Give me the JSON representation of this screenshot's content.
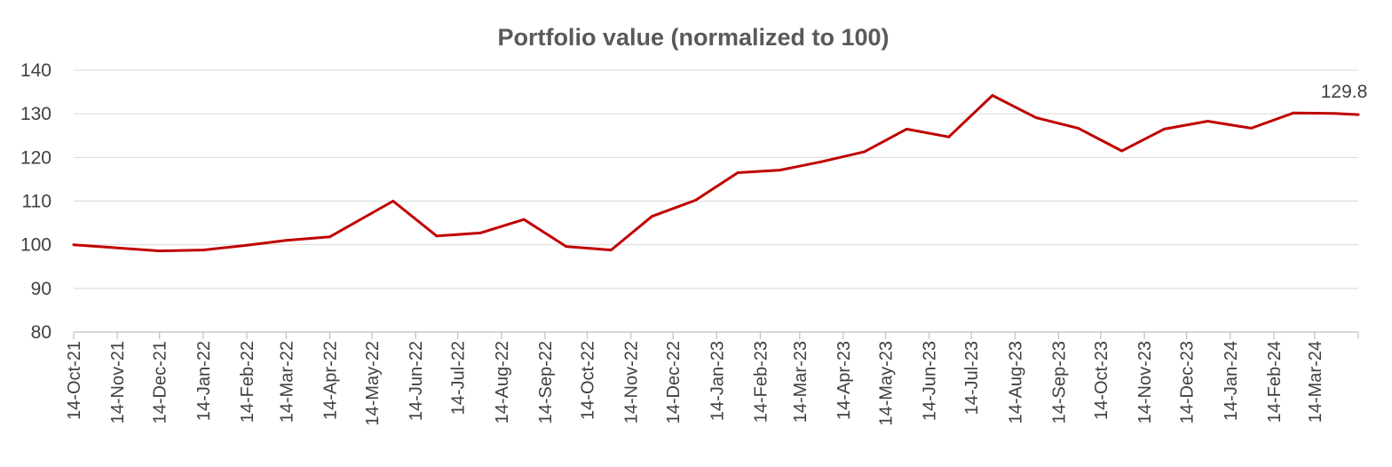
{
  "chart_data": {
    "type": "line",
    "title": "Portfolio value (normalized to 100)",
    "xlabel": "",
    "ylabel": "",
    "ylim": [
      80,
      140
    ],
    "yticks": [
      80,
      90,
      100,
      110,
      120,
      130,
      140
    ],
    "grid": true,
    "color": "#c00000",
    "x_tick_labels": [
      "14-Oct-21",
      "14-Nov-21",
      "14-Dec-21",
      "14-Jan-22",
      "14-Feb-22",
      "14-Mar-22",
      "14-Apr-22",
      "14-May-22",
      "14-Jun-22",
      "14-Jul-22",
      "14-Aug-22",
      "14-Sep-22",
      "14-Oct-22",
      "14-Nov-22",
      "14-Dec-22",
      "14-Jan-23",
      "14-Feb-23",
      "14-Mar-23",
      "14-Apr-23",
      "14-May-23",
      "14-Jun-23",
      "14-Jul-23",
      "14-Aug-23",
      "14-Sep-23",
      "14-Oct-23",
      "14-Nov-23",
      "14-Dec-23",
      "14-Jan-24",
      "14-Feb-24",
      "14-Mar-24"
    ],
    "x_range": [
      "2021-10-14",
      "2024-04-14"
    ],
    "series": [
      {
        "points": [
          {
            "x": "2021-10-14",
            "y": 100.0
          },
          {
            "x": "2021-12-14",
            "y": 98.6
          },
          {
            "x": "2022-01-14",
            "y": 98.8
          },
          {
            "x": "2022-02-14",
            "y": 99.9
          },
          {
            "x": "2022-03-14",
            "y": 101.0
          },
          {
            "x": "2022-04-14",
            "y": 101.8
          },
          {
            "x": "2022-05-29",
            "y": 110.0
          },
          {
            "x": "2022-06-29",
            "y": 102.0
          },
          {
            "x": "2022-07-30",
            "y": 102.7
          },
          {
            "x": "2022-08-30",
            "y": 105.8
          },
          {
            "x": "2022-09-29",
            "y": 99.6
          },
          {
            "x": "2022-10-31",
            "y": 98.8
          },
          {
            "x": "2022-11-29",
            "y": 106.5
          },
          {
            "x": "2022-12-30",
            "y": 110.2
          },
          {
            "x": "2023-01-29",
            "y": 116.5
          },
          {
            "x": "2023-02-28",
            "y": 117.1
          },
          {
            "x": "2023-03-29",
            "y": 119.0
          },
          {
            "x": "2023-04-29",
            "y": 121.3
          },
          {
            "x": "2023-05-29",
            "y": 126.5
          },
          {
            "x": "2023-06-28",
            "y": 124.7
          },
          {
            "x": "2023-07-29",
            "y": 134.2
          },
          {
            "x": "2023-08-29",
            "y": 129.1
          },
          {
            "x": "2023-09-28",
            "y": 126.7
          },
          {
            "x": "2023-10-29",
            "y": 121.5
          },
          {
            "x": "2023-11-28",
            "y": 126.5
          },
          {
            "x": "2023-12-29",
            "y": 128.3
          },
          {
            "x": "2024-01-29",
            "y": 126.7
          },
          {
            "x": "2024-02-28",
            "y": 130.2
          },
          {
            "x": "2024-03-28",
            "y": 130.1
          },
          {
            "x": "2024-04-14",
            "y": 129.8
          }
        ]
      }
    ],
    "annotations": [
      {
        "text": "129.8",
        "x": "2024-04-14",
        "y": 129.8
      }
    ]
  }
}
